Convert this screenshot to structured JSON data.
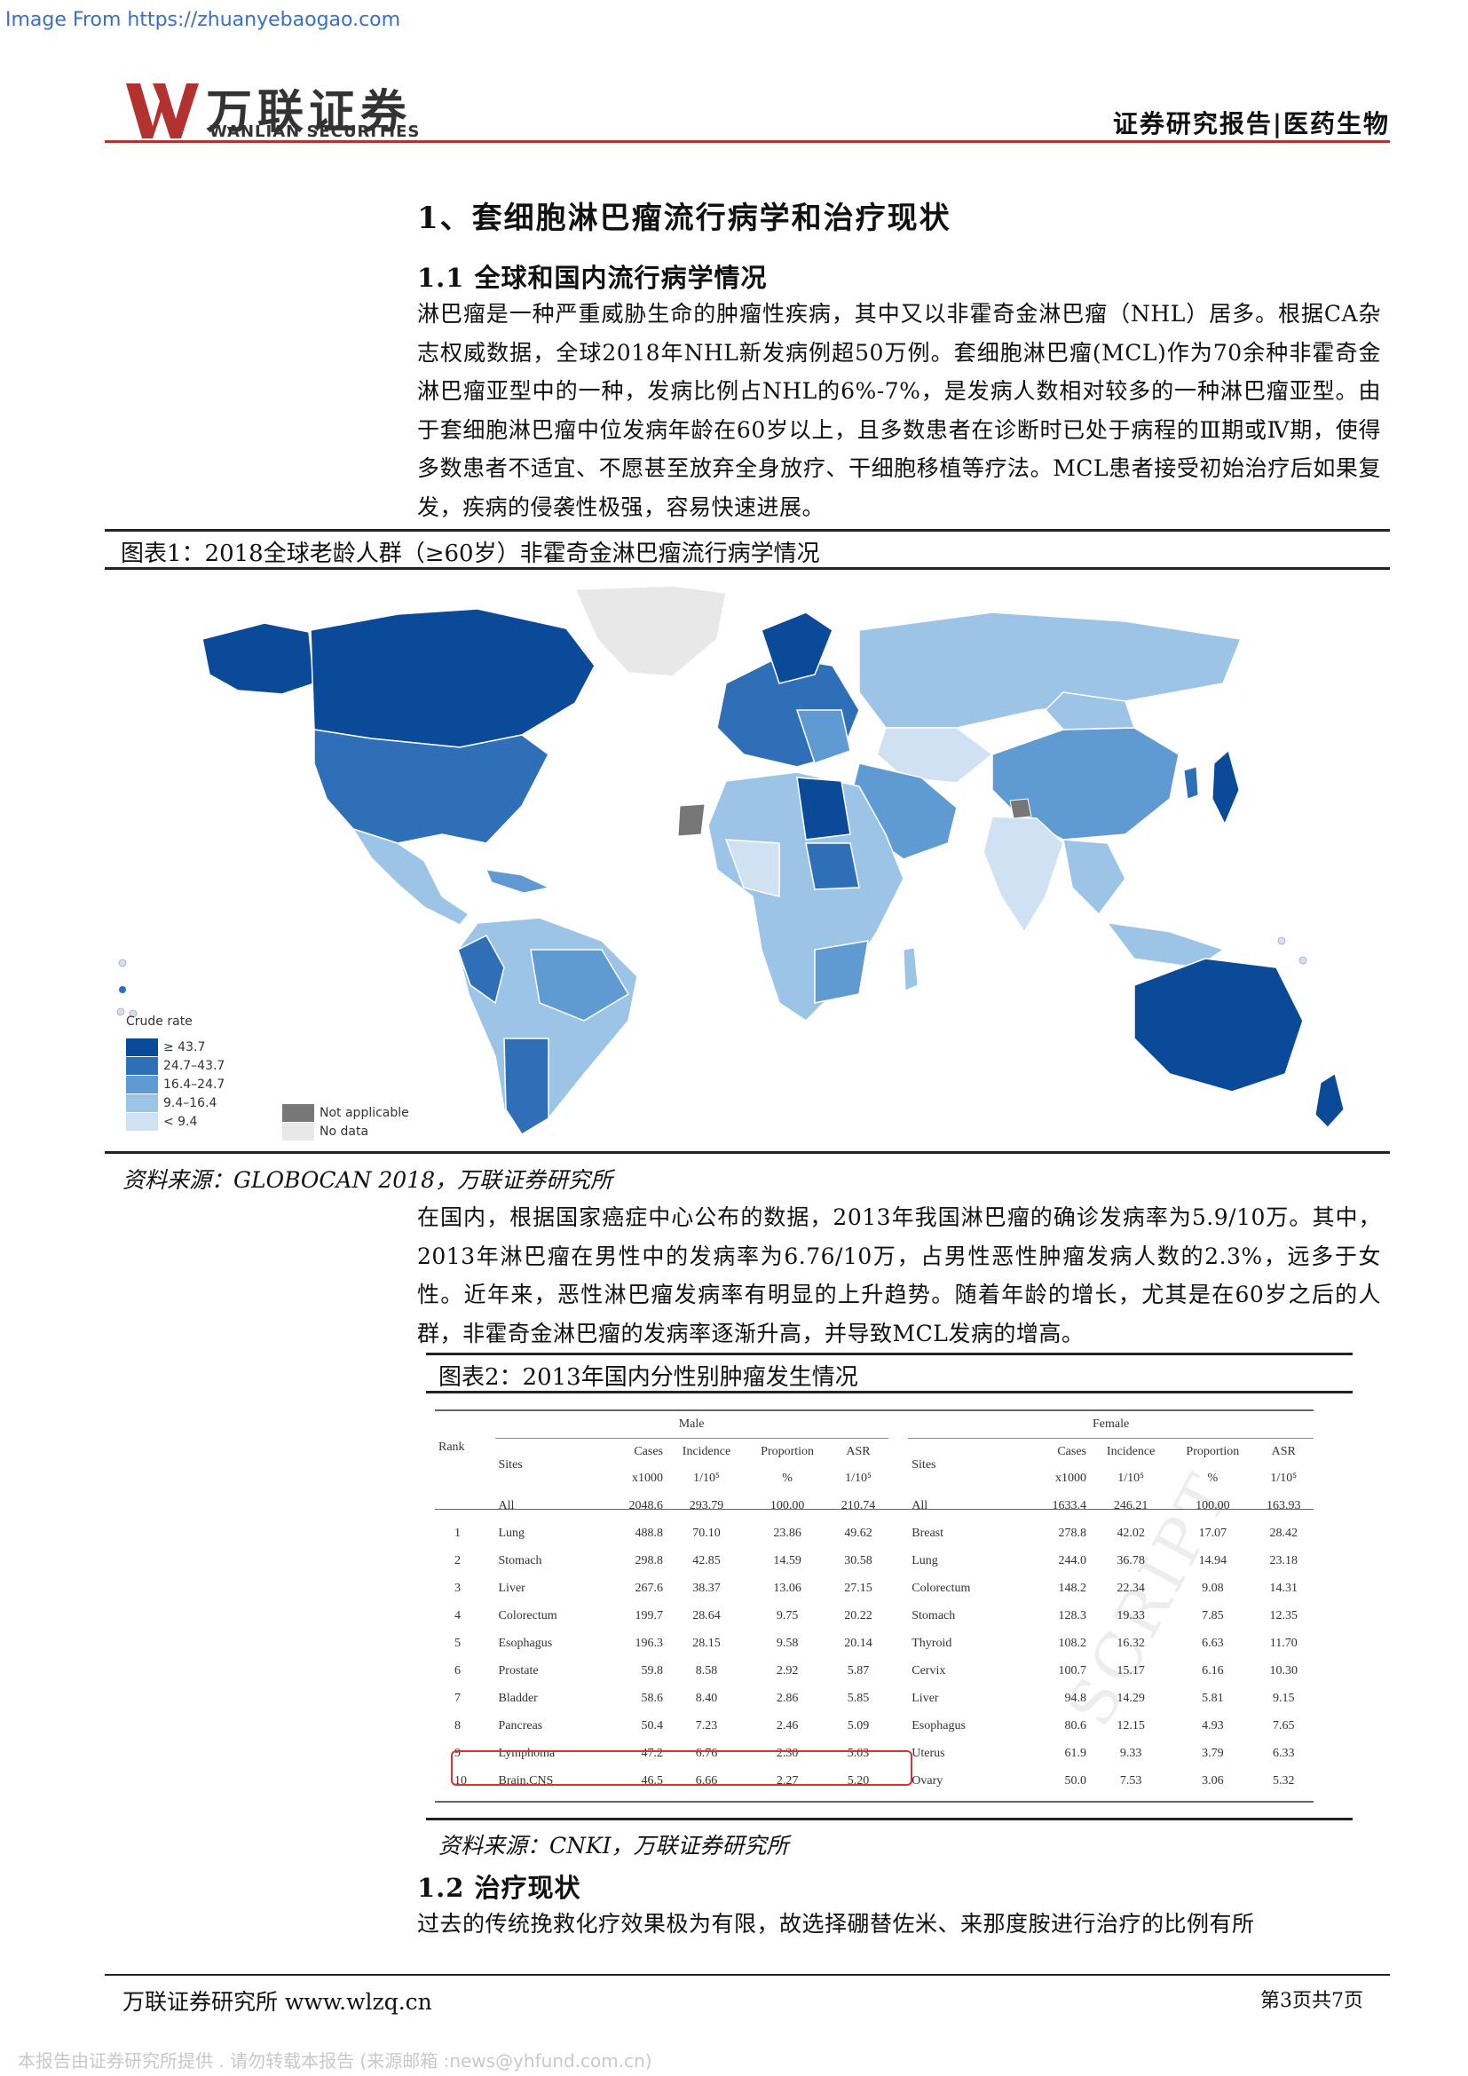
{
  "watermark_top": "Image From https://zhuanyebaogao.com",
  "header": {
    "logo_cn": "万联证券",
    "logo_en": "WANLIAN SECURITIES",
    "category": "证券研究报告|医药生物"
  },
  "section_title": "1、套细胞淋巴瘤流行病学和治疗现状",
  "subsection_1": "1.1 全球和国内流行病学情况",
  "paragraph_1": "淋巴瘤是一种严重威胁生命的肿瘤性疾病，其中又以非霍奇金淋巴瘤（NHL）居多。根据CA杂志权威数据，全球2018年NHL新发病例超50万例。套细胞淋巴瘤(MCL)作为70余种非霍奇金淋巴瘤亚型中的一种，发病比例占NHL的6%-7%，是发病人数相对较多的一种淋巴瘤亚型。由于套细胞淋巴瘤中位发病年龄在60岁以上，且多数患者在诊断时已处于病程的Ⅲ期或Ⅳ期，使得多数患者不适宜、不愿甚至放弃全身放疗、干细胞移植等疗法。MCL患者接受初始治疗后如果复发，疾病的侵袭性极强，容易快速进展。",
  "figure_1": {
    "title": "图表1：2018全球老龄人群（≥60岁）非霍奇金淋巴瘤流行病学情况",
    "legend_title": "Crude rate",
    "legend": [
      {
        "label": "≥ 43.7",
        "color": "#0b4a99"
      },
      {
        "label": "24.7–43.7",
        "color": "#2f6fb8"
      },
      {
        "label": "16.4–24.7",
        "color": "#5f9bd2"
      },
      {
        "label": "9.4–16.4",
        "color": "#9cc4e6"
      },
      {
        "label": "< 9.4",
        "color": "#cfe1f3"
      }
    ],
    "legend_extra": [
      {
        "label": "Not applicable",
        "color": "#777777"
      },
      {
        "label": "No data",
        "color": "#e8e8e8"
      }
    ],
    "source": "资料来源：GLOBOCAN 2018，万联证券研究所"
  },
  "paragraph_2": "在国内，根据国家癌症中心公布的数据，2013年我国淋巴瘤的确诊发病率为5.9/10万。其中，2013年淋巴瘤在男性中的发病率为6.76/10万，占男性恶性肿瘤发病人数的2.3%，远多于女性。近年来，恶性淋巴瘤发病率有明显的上升趋势。随着年龄的增长，尤其是在60岁之后的人群，非霍奇金淋巴瘤的发病率逐渐升高，并导致MCL发病的增高。",
  "figure_2": {
    "title": "图表2：2013年国内分性别肿瘤发生情况",
    "group_male": "Male",
    "group_female": "Female",
    "col_rank": "Rank",
    "col_sites": "Sites",
    "col_cases": "Cases",
    "col_incidence": "Incidence",
    "col_proportion": "Proportion",
    "col_asr": "ASR",
    "unit_cases": "x1000",
    "unit_incidence": "1/10⁵",
    "unit_proportion": "%",
    "unit_asr": "1/10⁵",
    "stamp": "SCRIPT",
    "rows": [
      {
        "rank": "",
        "m_site": "All",
        "m_cases": "2048.6",
        "m_inc": "293.79",
        "m_prop": "100.00",
        "m_asr": "210.74",
        "f_site": "All",
        "f_cases": "1633.4",
        "f_inc": "246.21",
        "f_prop": "100.00",
        "f_asr": "163.93"
      },
      {
        "rank": "1",
        "m_site": "Lung",
        "m_cases": "488.8",
        "m_inc": "70.10",
        "m_prop": "23.86",
        "m_asr": "49.62",
        "f_site": "Breast",
        "f_cases": "278.8",
        "f_inc": "42.02",
        "f_prop": "17.07",
        "f_asr": "28.42"
      },
      {
        "rank": "2",
        "m_site": "Stomach",
        "m_cases": "298.8",
        "m_inc": "42.85",
        "m_prop": "14.59",
        "m_asr": "30.58",
        "f_site": "Lung",
        "f_cases": "244.0",
        "f_inc": "36.78",
        "f_prop": "14.94",
        "f_asr": "23.18"
      },
      {
        "rank": "3",
        "m_site": "Liver",
        "m_cases": "267.6",
        "m_inc": "38.37",
        "m_prop": "13.06",
        "m_asr": "27.15",
        "f_site": "Colorectum",
        "f_cases": "148.2",
        "f_inc": "22.34",
        "f_prop": "9.08",
        "f_asr": "14.31"
      },
      {
        "rank": "4",
        "m_site": "Colorectum",
        "m_cases": "199.7",
        "m_inc": "28.64",
        "m_prop": "9.75",
        "m_asr": "20.22",
        "f_site": "Stomach",
        "f_cases": "128.3",
        "f_inc": "19.33",
        "f_prop": "7.85",
        "f_asr": "12.35"
      },
      {
        "rank": "5",
        "m_site": "Esophagus",
        "m_cases": "196.3",
        "m_inc": "28.15",
        "m_prop": "9.58",
        "m_asr": "20.14",
        "f_site": "Thyroid",
        "f_cases": "108.2",
        "f_inc": "16.32",
        "f_prop": "6.63",
        "f_asr": "11.70"
      },
      {
        "rank": "6",
        "m_site": "Prostate",
        "m_cases": "59.8",
        "m_inc": "8.58",
        "m_prop": "2.92",
        "m_asr": "5.87",
        "f_site": "Cervix",
        "f_cases": "100.7",
        "f_inc": "15.17",
        "f_prop": "6.16",
        "f_asr": "10.30"
      },
      {
        "rank": "7",
        "m_site": "Bladder",
        "m_cases": "58.6",
        "m_inc": "8.40",
        "m_prop": "2.86",
        "m_asr": "5.85",
        "f_site": "Liver",
        "f_cases": "94.8",
        "f_inc": "14.29",
        "f_prop": "5.81",
        "f_asr": "9.15"
      },
      {
        "rank": "8",
        "m_site": "Pancreas",
        "m_cases": "50.4",
        "m_inc": "7.23",
        "m_prop": "2.46",
        "m_asr": "5.09",
        "f_site": "Esophagus",
        "f_cases": "80.6",
        "f_inc": "12.15",
        "f_prop": "4.93",
        "f_asr": "7.65"
      },
      {
        "rank": "9",
        "m_site": "Lymphoma",
        "m_cases": "47.2",
        "m_inc": "6.76",
        "m_prop": "2.30",
        "m_asr": "5.03",
        "f_site": "Uterus",
        "f_cases": "61.9",
        "f_inc": "9.33",
        "f_prop": "3.79",
        "f_asr": "6.33"
      },
      {
        "rank": "10",
        "m_site": "Brain,CNS",
        "m_cases": "46.5",
        "m_inc": "6.66",
        "m_prop": "2.27",
        "m_asr": "5.20",
        "f_site": "Ovary",
        "f_cases": "50.0",
        "f_inc": "7.53",
        "f_prop": "3.06",
        "f_asr": "5.32"
      }
    ],
    "source": "资料来源：CNKI，万联证券研究所"
  },
  "subsection_2": "1.2 治疗现状",
  "paragraph_3": "过去的传统挽救化疗效果极为有限，故选择硼替佐米、来那度胺进行治疗的比例有所",
  "footer": {
    "left": "万联证券研究所 www.wlzq.cn",
    "right": "第3页共7页"
  },
  "bottom_note": "本报告由证券研究所提供 . 请勿转载本报告 (来源邮箱 :news@yhfund.com.cn)"
}
